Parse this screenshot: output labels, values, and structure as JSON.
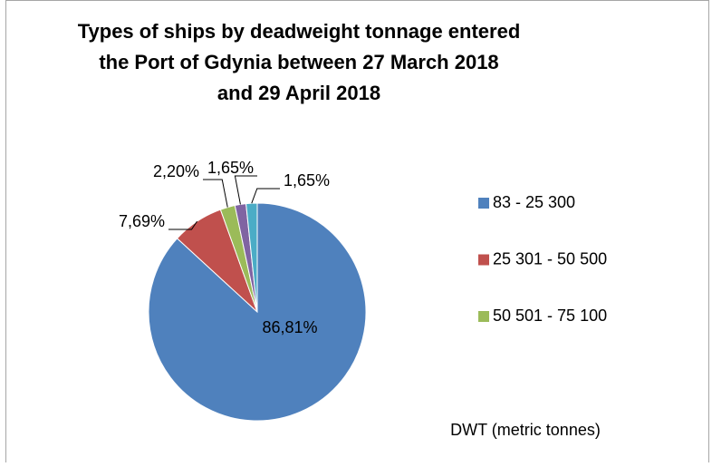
{
  "chart_data": {
    "type": "pie",
    "title": [
      "Types of ships by deadweight tonnage entered",
      "the Port of Gdynia between 27 March 2018",
      "and 29 April 2018"
    ],
    "categories": [
      "83 - 25 300",
      "25 301 - 50 500",
      "50 501 - 75 100",
      null,
      null
    ],
    "values": [
      86.81,
      7.69,
      2.2,
      1.65,
      1.65
    ],
    "value_labels": [
      "86,81%",
      "7,69%",
      "2,20%",
      "1,65%",
      "1,65%"
    ],
    "colors": [
      "#4f81bd",
      "#c0504d",
      "#9bbb59",
      "#8064a2",
      "#4bacc6"
    ],
    "annotation": "DWT (metric tonnes)"
  }
}
